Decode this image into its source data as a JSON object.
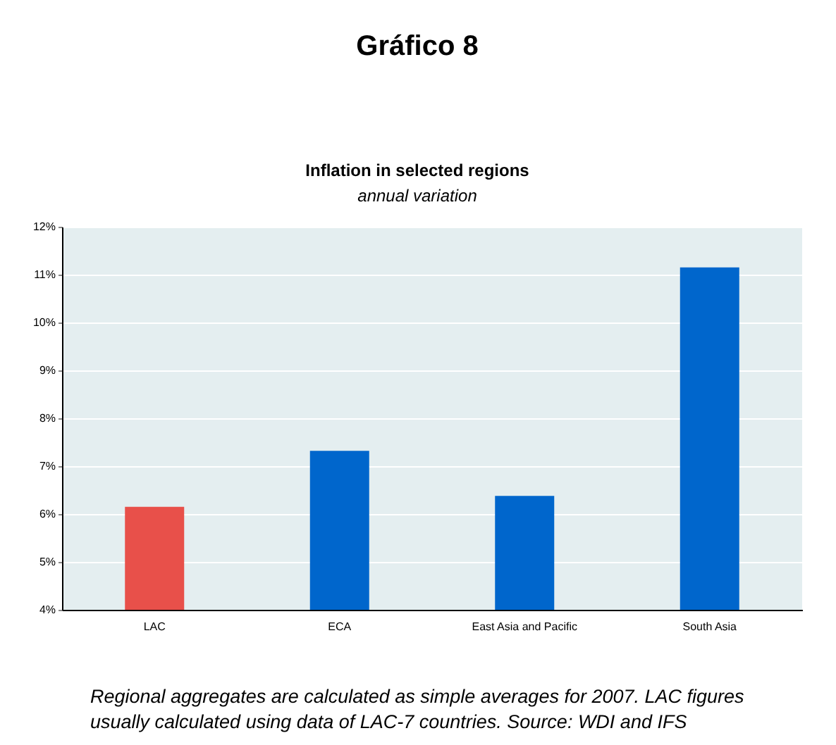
{
  "chart_data": {
    "type": "bar",
    "title": "Inflation in selected regions",
    "subtitle": "annual variation",
    "categories": [
      "LAC",
      "ECA",
      "East Asia and Pacific",
      "South Asia"
    ],
    "values": [
      6.15,
      7.32,
      6.38,
      11.15
    ],
    "colors": [
      "#e8504a",
      "#0066cc",
      "#0066cc",
      "#0066cc"
    ],
    "ylim": [
      4,
      12
    ],
    "yticks": [
      {
        "value": 4,
        "label": "4%"
      },
      {
        "value": 5,
        "label": "5%"
      },
      {
        "value": 6,
        "label": "6%"
      },
      {
        "value": 7,
        "label": "7%"
      },
      {
        "value": 8,
        "label": "8%"
      },
      {
        "value": 9,
        "label": "9%"
      },
      {
        "value": 10,
        "label": "10%"
      },
      {
        "value": 11,
        "label": "11%"
      },
      {
        "value": 12,
        "label": "12%"
      }
    ],
    "grid": "y",
    "annotations": [
      "Gráfico 8",
      "Regional aggregates are calculated as simple averages for 2007. LAC figures usually calculated using data of LAC-7 countries. Source: WDI and IFS"
    ]
  }
}
